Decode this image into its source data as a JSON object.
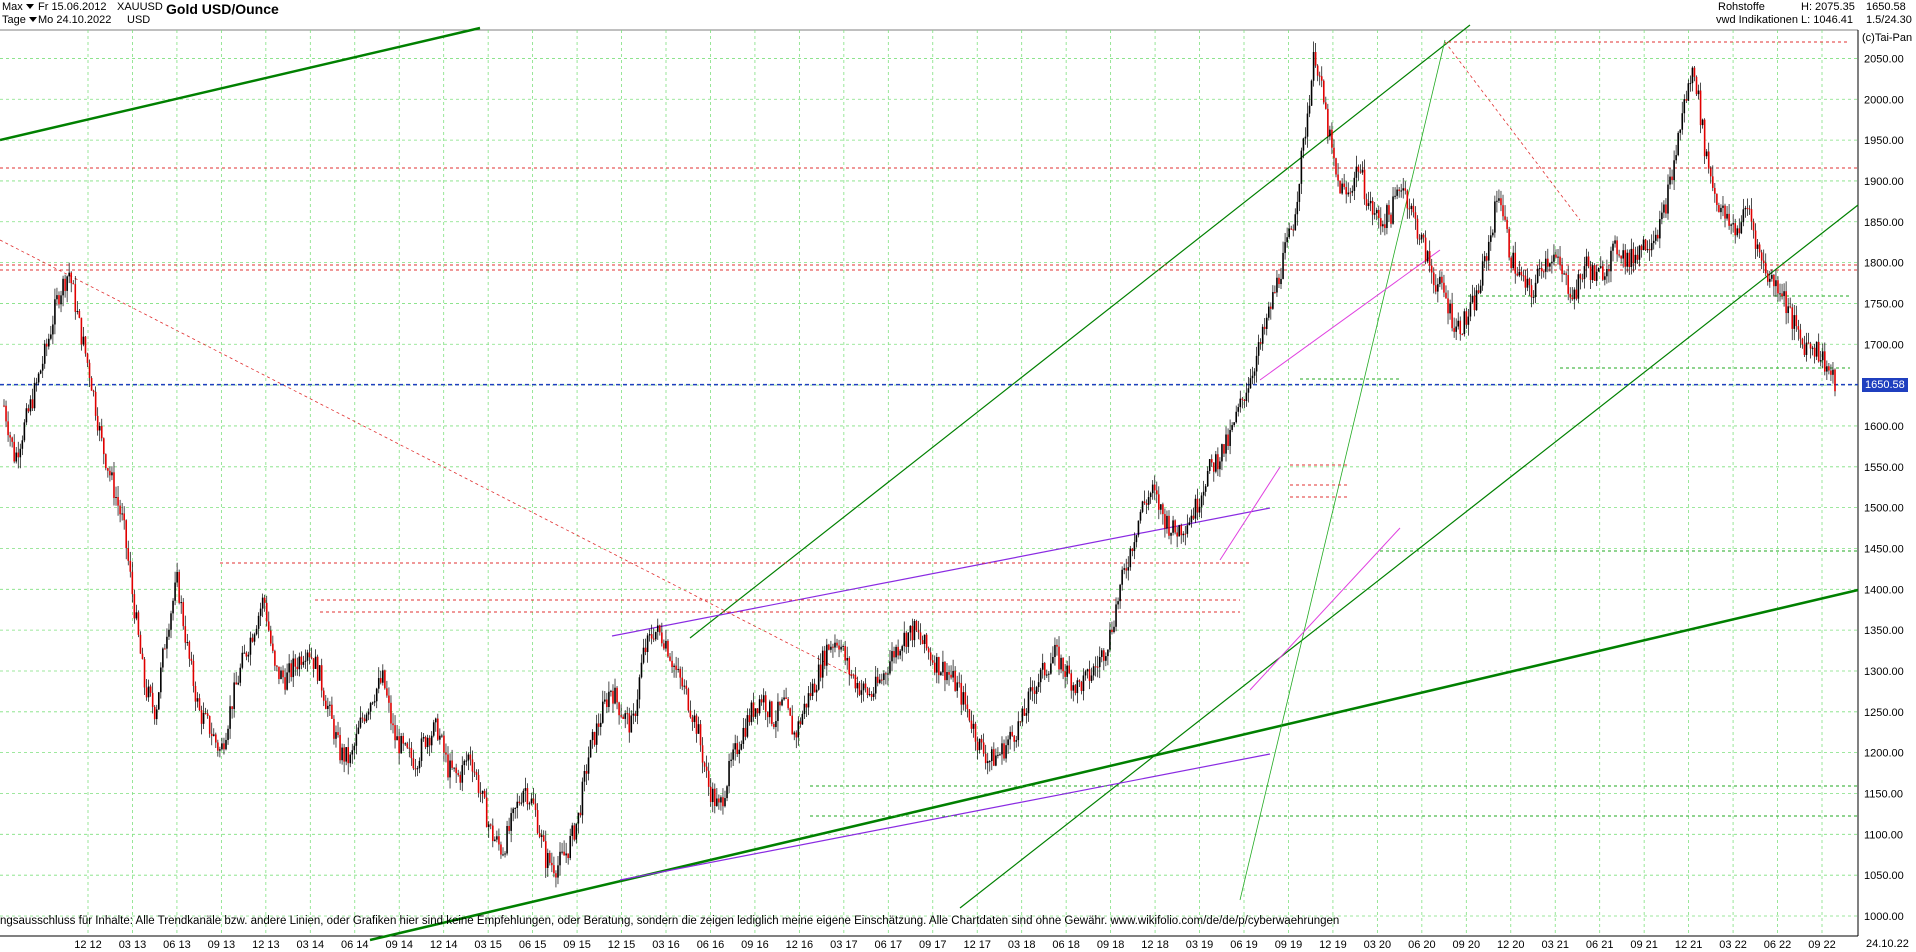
{
  "header": {
    "period_select": "Max",
    "interval_select": "Tage",
    "date_from": "Fr 15.06.2012",
    "date_to": "Mo 24.10.2022",
    "symbol": "XAUUSD",
    "currency": "USD",
    "title": "Gold USD/Ounce",
    "category": "Rohstoffe",
    "source": "vwd Indikationen",
    "high": "H: 2075.35",
    "low": "L: 1046.41",
    "last": "1650.58",
    "scale_info": "1.5/24.30",
    "copyright": "(c)Tai-Pan"
  },
  "price_marker": "1650.58",
  "footer_note": "ngsausschluss für Inhalte: Alle Trendkanäle bzw. andere Linien, oder Grafiken hier sind keine Empfehlungen, oder Beratung, sondern die zeigen lediglich meine eigene Einschätzung. Alle Chartdaten sind ohne Gewähr.  www.wikifolio.com/de/de/p/cyberwaehrungen",
  "end_date": "24.10.22",
  "colors": {
    "candles_up": "#000000",
    "candles_down": "#e00000",
    "green_trend": "#008000",
    "thin_green": "#22aa22",
    "purple": "#8a2be2",
    "magenta": "#e040e0",
    "red_dashed": "#e03030",
    "blue_dashed": "#1f3fbf",
    "grid": "#7fe07f"
  },
  "chart_data": {
    "type": "line",
    "title": "Gold USD/Ounce",
    "xlabel": "",
    "ylabel": "",
    "ylim": [
      1000,
      2075
    ],
    "y_ticks": [
      "1000.00",
      "1050.00",
      "1100.00",
      "1150.00",
      "1200.00",
      "1250.00",
      "1300.00",
      "1350.00",
      "1400.00",
      "1450.00",
      "1500.00",
      "1550.00",
      "1600.00",
      "1650.00",
      "1700.00",
      "1750.00",
      "1800.00",
      "1850.00",
      "1900.00",
      "1950.00",
      "2000.00",
      "2050.00"
    ],
    "x_ticks": [
      "12 12",
      "03 13",
      "06 13",
      "09 13",
      "12 13",
      "03 14",
      "06 14",
      "09 14",
      "12 14",
      "03 15",
      "06 15",
      "09 15",
      "12 15",
      "03 16",
      "06 16",
      "09 16",
      "12 16",
      "03 17",
      "06 17",
      "09 17",
      "12 17",
      "03 18",
      "06 18",
      "09 18",
      "12 18",
      "03 19",
      "06 19",
      "09 19",
      "12 19",
      "03 20",
      "06 20",
      "09 20",
      "12 20",
      "03 21",
      "06 21",
      "09 21",
      "12 21",
      "03 22",
      "06 22",
      "09 22"
    ],
    "series": [
      {
        "values": [
          1625,
          1560,
          1605,
          1650,
          1700,
          1760,
          1790,
          1720,
          1660,
          1580,
          1530,
          1480,
          1380,
          1280,
          1250,
          1350,
          1410,
          1320,
          1250,
          1230,
          1200,
          1260,
          1310,
          1350,
          1390,
          1300,
          1290,
          1310,
          1330,
          1300,
          1250,
          1200,
          1190,
          1240,
          1270,
          1290,
          1220,
          1200,
          1190,
          1220,
          1230,
          1180,
          1170,
          1200,
          1150,
          1100,
          1080,
          1120,
          1160,
          1130,
          1070,
          1060,
          1080,
          1120,
          1200,
          1240,
          1280,
          1250,
          1230,
          1320,
          1350,
          1340,
          1300,
          1270,
          1230,
          1160,
          1130,
          1180,
          1220,
          1250,
          1270,
          1240,
          1260,
          1220,
          1260,
          1290,
          1330,
          1340,
          1300,
          1280,
          1270,
          1290,
          1320,
          1340,
          1350,
          1330,
          1310,
          1300,
          1280,
          1250,
          1210,
          1190,
          1200,
          1220,
          1240,
          1280,
          1300,
          1320,
          1300,
          1280,
          1290,
          1310,
          1340,
          1400,
          1450,
          1500,
          1520,
          1490,
          1470,
          1480,
          1500,
          1540,
          1560,
          1580,
          1620,
          1660,
          1700,
          1750,
          1800,
          1850,
          1950,
          2060,
          1980,
          1900,
          1880,
          1920,
          1870,
          1850,
          1860,
          1900,
          1860,
          1820,
          1780,
          1760,
          1720,
          1730,
          1760,
          1820,
          1890,
          1810,
          1780,
          1760,
          1800,
          1810,
          1780,
          1760,
          1800,
          1780,
          1800,
          1820,
          1800,
          1820,
          1830,
          1850,
          1910,
          1990,
          2040,
          1940,
          1880,
          1850,
          1840,
          1870,
          1810,
          1780,
          1770,
          1730,
          1700,
          1700,
          1680,
          1650
        ]
      }
    ]
  }
}
